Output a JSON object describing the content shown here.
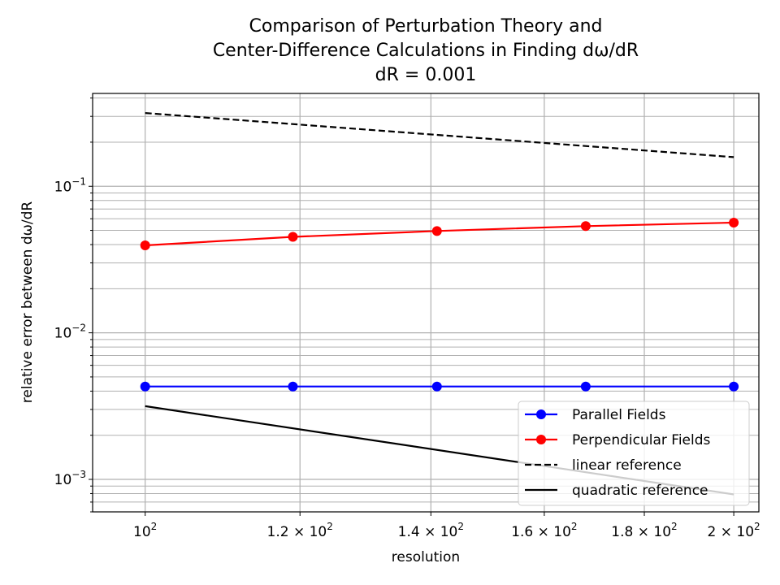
{
  "chart_data": {
    "type": "line",
    "title": [
      "Comparison of Perturbation Theory and",
      "Center-Difference Calculations in Finding dω/dR",
      "dR = 0.001"
    ],
    "xlabel": "resolution",
    "ylabel": "relative error between dω/dR",
    "xscale": "log",
    "yscale": "log",
    "xlim": [
      94,
      206
    ],
    "ylim": [
      0.0006,
      0.43
    ],
    "grid": true,
    "legend_position": "lower right",
    "x": [
      100,
      119,
      141,
      168,
      200
    ],
    "x_ticks": [
      {
        "value": 100,
        "mantissa": "",
        "exp": "2"
      },
      {
        "value": 120,
        "mantissa": "1.2 × ",
        "exp": "2"
      },
      {
        "value": 140,
        "mantissa": "1.4 × ",
        "exp": "2"
      },
      {
        "value": 160,
        "mantissa": "1.6 × ",
        "exp": "2"
      },
      {
        "value": 180,
        "mantissa": "1.8 × ",
        "exp": "2"
      },
      {
        "value": 200,
        "mantissa": "2 × ",
        "exp": "2"
      }
    ],
    "y_ticks": [
      {
        "value": 0.1,
        "exp": "−1"
      },
      {
        "value": 0.01,
        "exp": "−2"
      },
      {
        "value": 0.001,
        "exp": "−3"
      }
    ],
    "series": [
      {
        "name": "Parallel Fields",
        "color": "#0000ff",
        "style": "solid",
        "marker": "circle",
        "values": [
          0.0043,
          0.0043,
          0.0043,
          0.0043,
          0.0043
        ]
      },
      {
        "name": "Perpendicular Fields",
        "color": "#ff0000",
        "style": "solid",
        "marker": "circle",
        "values": [
          0.0395,
          0.0452,
          0.0495,
          0.0535,
          0.0565
        ]
      },
      {
        "name": "linear reference",
        "color": "#000000",
        "style": "dashed",
        "marker": "none",
        "x": [
          100,
          200
        ],
        "values": [
          0.316,
          0.158
        ]
      },
      {
        "name": "quadratic reference",
        "color": "#000000",
        "style": "solid",
        "marker": "none",
        "x": [
          100,
          200
        ],
        "values": [
          0.00316,
          0.00079
        ]
      }
    ]
  }
}
